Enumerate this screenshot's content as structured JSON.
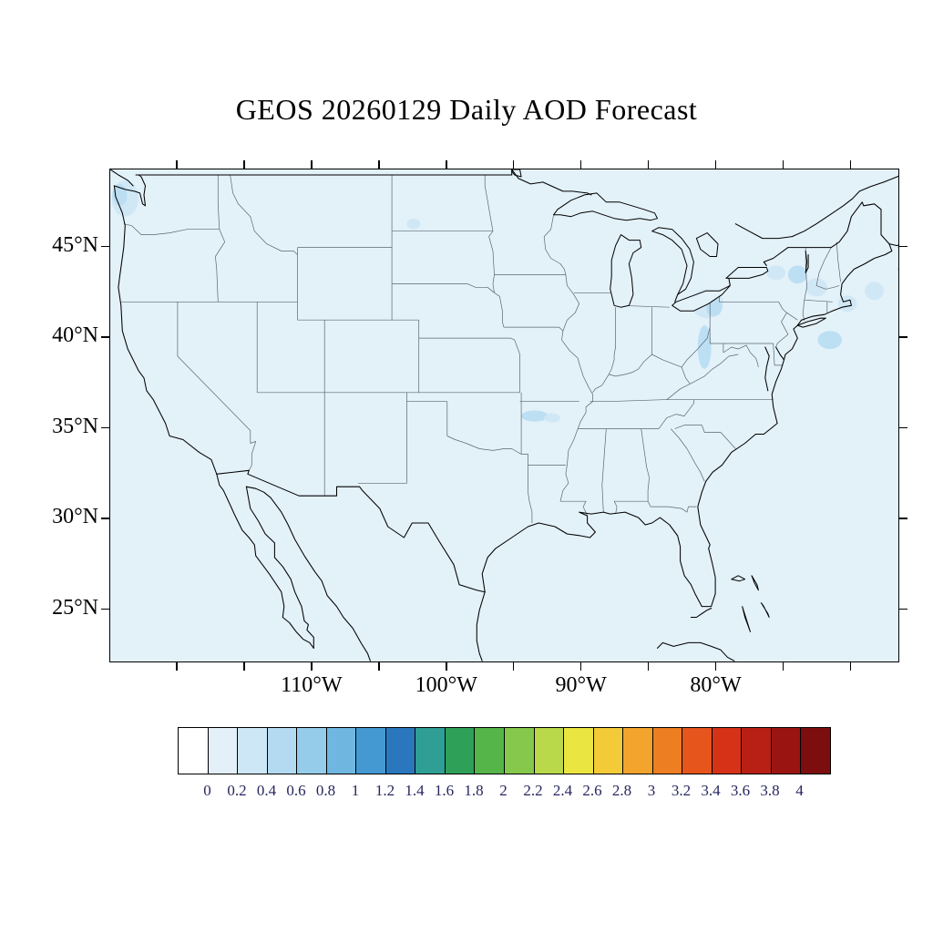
{
  "title": "GEOS 20260129 Daily AOD Forecast",
  "map": {
    "y_axis_labels": [
      "45°N",
      "40°N",
      "35°N",
      "30°N",
      "25°N"
    ],
    "x_axis_labels": [
      "110°W",
      "100°W",
      "90°W",
      "80°W"
    ]
  },
  "colorbar": {
    "labels": [
      "0",
      "0.2",
      "0.4",
      "0.6",
      "0.8",
      "1",
      "1.2",
      "1.4",
      "1.6",
      "1.8",
      "2",
      "2.2",
      "2.4",
      "2.6",
      "2.8",
      "3",
      "3.2",
      "3.4",
      "3.6",
      "3.8",
      "4"
    ],
    "colors": [
      "#ffffff",
      "#e3f0fa",
      "#cde7f6",
      "#b3daf1",
      "#95cce9",
      "#6fb7e0",
      "#4499d2",
      "#2b77bd",
      "#2f9e94",
      "#2fa058",
      "#55b549",
      "#85c84c",
      "#b9d94a",
      "#ebe542",
      "#f3cb38",
      "#f2a42c",
      "#ed7e22",
      "#e5551c",
      "#d63218",
      "#b92015",
      "#9a1512",
      "#7c0e0e"
    ],
    "label_color": "#26265e"
  },
  "chart_data": {
    "type": "heatmap",
    "title": "GEOS 20260129 Daily AOD Forecast",
    "variable": "Aerosol Optical Depth (AOD)",
    "region": "Continental United States",
    "lat_ticks_deg_n": [
      45,
      40,
      35,
      30,
      25
    ],
    "lon_ticks_deg_w": [
      110,
      100,
      90,
      80
    ],
    "colorbar_values": [
      0,
      0.2,
      0.4,
      0.6,
      0.8,
      1,
      1.2,
      1.4,
      1.6,
      1.8,
      2,
      2.2,
      2.4,
      2.6,
      2.8,
      3,
      3.2,
      3.4,
      3.6,
      3.8,
      4
    ],
    "field_summary": "AOD mostly below 0.2 nationwide; isolated light maxima near 0.2-0.4 over western Washington, the Lake Erie / Ohio valley area, northern New England and offshore waters, and southern Missouri / Arkansas."
  }
}
